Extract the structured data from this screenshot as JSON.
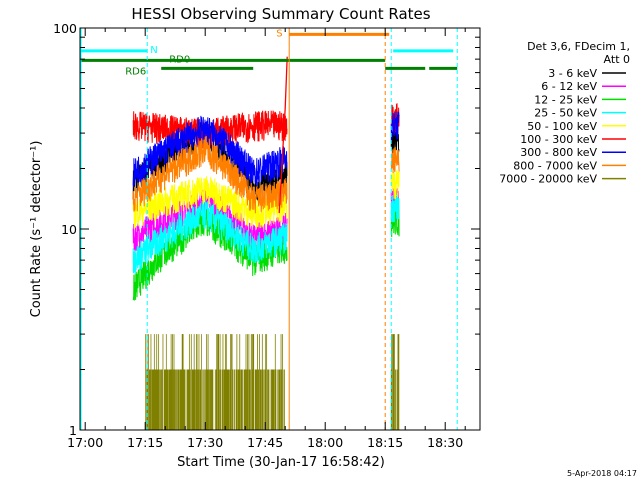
{
  "chart_data": {
    "type": "line",
    "title": "HESSI Observing Summary Count Rates",
    "xlabel": "Start Time (30-Jan-17 16:58:42)",
    "ylabel": "Count Rate (s⁻¹ detector⁻¹)",
    "yscale": "log",
    "xlim": [
      "16:58:42",
      "18:38:42"
    ],
    "ylim": [
      1,
      100
    ],
    "x_tick_labels": [
      "17:00",
      "17:15",
      "17:30",
      "17:45",
      "18:00",
      "18:15",
      "18:30"
    ],
    "y_tick_labels": [
      "1",
      "10",
      "100"
    ],
    "legend": {
      "placement": "right",
      "header": [
        "Det 3,6, FDecim 1,",
        "Att 0"
      ],
      "entries": [
        {
          "name": "3 - 6 keV",
          "color": "#000000"
        },
        {
          "name": "6 - 12 keV",
          "color": "#ff00ff"
        },
        {
          "name": "12 - 25 keV",
          "color": "#00dd00"
        },
        {
          "name": "25 - 50 keV",
          "color": "#00ffff"
        },
        {
          "name": "50 - 100 keV",
          "color": "#ffff00"
        },
        {
          "name": "100 - 300 keV",
          "color": "#ff0000"
        },
        {
          "name": "300 - 800 keV",
          "color": "#0000ff"
        },
        {
          "name": "800 - 7000 keV",
          "color": "#ff8000"
        },
        {
          "name": "7000 - 20000 keV",
          "color": "#808000"
        }
      ]
    },
    "flag_annotations": [
      {
        "label": "N",
        "color": "#00ffff",
        "segments": [
          [
            "16:58:42",
            "17:15:30"
          ],
          [
            "18:17",
            "18:32"
          ]
        ],
        "level": 77
      },
      {
        "label": "S",
        "color": "#ff8000",
        "segments": [
          [
            "17:51",
            "18:16"
          ]
        ],
        "level": 93
      },
      {
        "label": "RD0",
        "color": "#008000",
        "segments": [
          [
            "16:58:42",
            "18:15"
          ]
        ],
        "level": 69
      },
      {
        "label": "RD6",
        "color": "#008000",
        "segments": [
          [
            "17:19",
            "17:42"
          ],
          [
            "18:15",
            "18:25"
          ],
          [
            "18:26",
            "18:33"
          ]
        ],
        "level": 63
      }
    ],
    "series": [
      {
        "name": "3 - 6 keV",
        "approx_values": [
          [
            "17:12",
            17
          ],
          [
            "17:30",
            30
          ],
          [
            "17:42",
            16
          ],
          [
            "17:49",
            18
          ],
          [
            "18:17",
            28
          ]
        ]
      },
      {
        "name": "6 - 12 keV",
        "approx_values": [
          [
            "17:12",
            9
          ],
          [
            "17:30",
            14
          ],
          [
            "17:42",
            9
          ],
          [
            "17:49",
            10
          ],
          [
            "18:17",
            14
          ]
        ]
      },
      {
        "name": "12 - 25 keV",
        "approx_values": [
          [
            "17:12",
            5
          ],
          [
            "17:30",
            11
          ],
          [
            "17:42",
            7
          ],
          [
            "17:49",
            8
          ],
          [
            "18:17",
            11
          ]
        ]
      },
      {
        "name": "25 - 50 keV",
        "approx_values": [
          [
            "17:12",
            7
          ],
          [
            "17:30",
            12
          ],
          [
            "17:42",
            8
          ],
          [
            "17:49",
            9
          ],
          [
            "18:17",
            13
          ]
        ]
      },
      {
        "name": "50 - 100 keV",
        "approx_values": [
          [
            "17:12",
            12
          ],
          [
            "17:30",
            16
          ],
          [
            "17:42",
            12
          ],
          [
            "17:49",
            13
          ],
          [
            "18:17",
            17
          ]
        ]
      },
      {
        "name": "100 - 300 keV",
        "approx_values": [
          [
            "17:12",
            33
          ],
          [
            "17:30",
            30
          ],
          [
            "17:42",
            33
          ],
          [
            "17:49",
            33
          ],
          [
            "18:17",
            36
          ]
        ]
      },
      {
        "name": "300 - 800 keV",
        "approx_values": [
          [
            "17:12",
            19
          ],
          [
            "17:30",
            32
          ],
          [
            "17:42",
            19
          ],
          [
            "17:49",
            22
          ],
          [
            "18:17",
            33
          ]
        ]
      },
      {
        "name": "800 - 7000 keV",
        "approx_values": [
          [
            "17:12",
            14
          ],
          [
            "17:30",
            25
          ],
          [
            "17:42",
            14
          ],
          [
            "17:49",
            15
          ],
          [
            "18:17",
            22
          ]
        ]
      },
      {
        "name": "7000 - 20000 keV",
        "approx_values": [
          [
            "17:23",
            2
          ],
          [
            "17:33",
            2.5
          ],
          [
            "17:47",
            1
          ],
          [
            "18:17",
            2
          ]
        ]
      }
    ]
  },
  "footer": {
    "date_stamp": "5-Apr-2018 04:17"
  }
}
